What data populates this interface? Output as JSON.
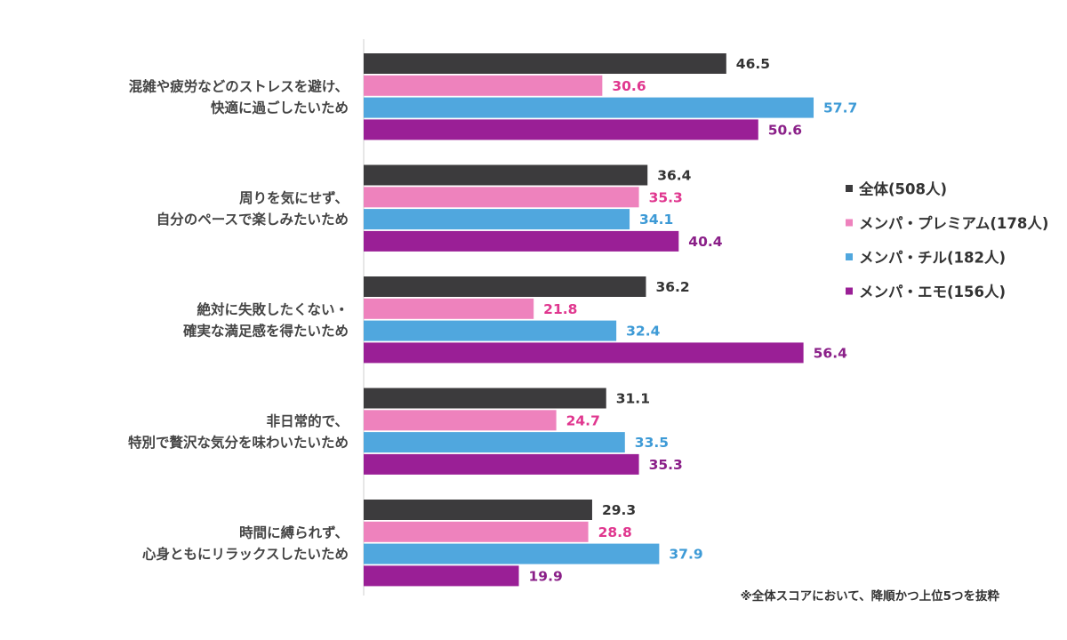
{
  "chart_data": {
    "type": "bar",
    "orientation": "horizontal",
    "categories": [
      [
        "混雑や疲労などのストレスを避け、",
        "快適に過ごしたいため"
      ],
      [
        "周りを気にせず、",
        "自分のペースで楽しみたいため"
      ],
      [
        "絶対に失敗したくない・",
        "確実な満足感を得たいため"
      ],
      [
        "非日常的で、",
        "特別で贅沢な気分を味わいたいため"
      ],
      [
        "時間に縛られず、",
        "心身ともにリラックスしたいため"
      ]
    ],
    "series": [
      {
        "name": "全体(508人)",
        "color": "#3c3b3d",
        "label_color": "#333333",
        "values": [
          46.5,
          36.4,
          36.2,
          31.1,
          29.3
        ]
      },
      {
        "name": "メンパ・プレミアム(178人)",
        "color": "#ee82bd",
        "label_color": "#e0378f",
        "values": [
          30.6,
          35.3,
          21.8,
          24.7,
          28.8
        ]
      },
      {
        "name": "メンパ・チル(182人)",
        "color": "#50a7de",
        "label_color": "#3d9ad6",
        "values": [
          57.7,
          34.1,
          32.4,
          33.5,
          37.9
        ]
      },
      {
        "name": "メンパ・エモ(156人)",
        "color": "#9a1f96",
        "label_color": "#8a1f88",
        "values": [
          50.6,
          40.4,
          56.4,
          35.3,
          19.9
        ]
      }
    ],
    "xlim": [
      0,
      60
    ],
    "axis_line_color": "#cfcfcf",
    "legend_position": "right",
    "footnote": "※全体スコアにおいて、降順かつ上位5つを抜粋"
  }
}
